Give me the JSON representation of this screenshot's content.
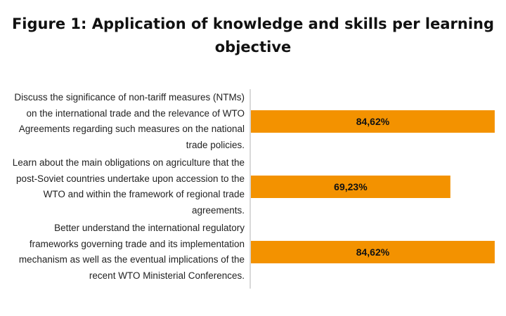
{
  "chart_data": {
    "type": "bar",
    "orientation": "horizontal",
    "title": "Figure 1: Application of knowledge and skills per learning objective",
    "categories": [
      "Discuss the significance of non-tariff measures (NTMs) on the international trade and the relevance of WTO Agreements regarding such measures on the national trade policies.",
      "Learn about the main obligations on agriculture that the post-Soviet countries undertake upon accession to the WTO and within the framework of regional trade agreements.",
      "Better understand the international regulatory frameworks governing trade and its implementation mechanism as well as the eventual implications of the recent WTO Ministerial Conferences."
    ],
    "values": [
      84.62,
      69.23,
      84.62
    ],
    "data_labels": [
      "84,62%",
      "69,23%",
      "84,62%"
    ],
    "xlim": [
      0,
      100
    ],
    "grid": false,
    "bar_color": "#f39200",
    "axis_color": "#d9d9d9"
  }
}
